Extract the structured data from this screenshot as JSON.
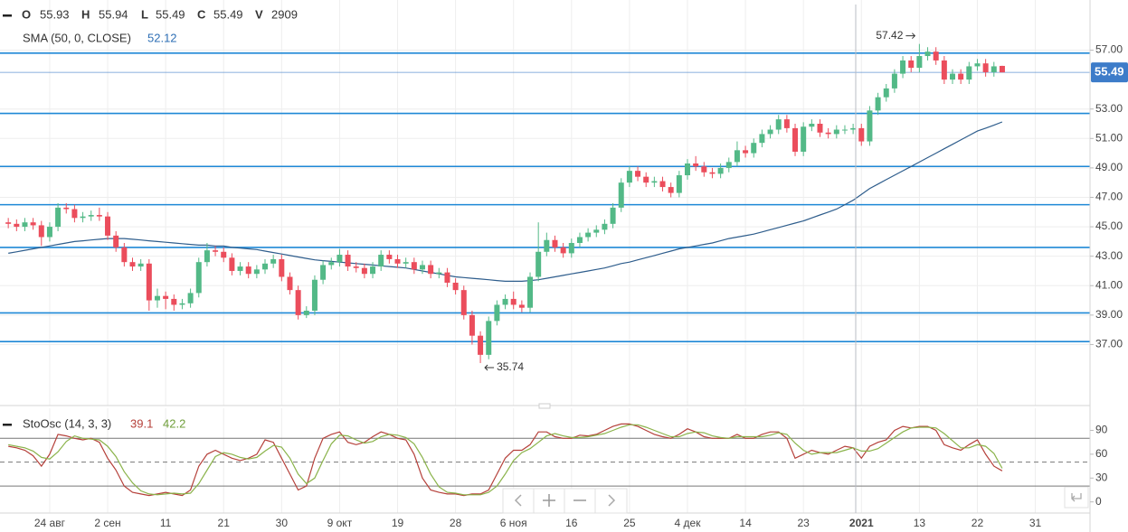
{
  "chart_data": [
    {
      "type": "candlestick",
      "labels": [
        "O",
        "H",
        "L",
        "C",
        "V"
      ],
      "volume": 2909,
      "up_color": "#53b987",
      "down_color": "#eb4d5c",
      "open": [
        45.3,
        45.2,
        45.0,
        45.3,
        45.1,
        44.3,
        45.0,
        46.3,
        46.2,
        45.6,
        45.7,
        45.8,
        45.7,
        44.4,
        43.6,
        42.6,
        42.3,
        42.5,
        40.0,
        40.3,
        40.1,
        39.7,
        39.8,
        40.5,
        42.6,
        43.4,
        43.3,
        42.9,
        42.0,
        42.3,
        41.8,
        42.1,
        42.5,
        42.8,
        41.6,
        40.7,
        39.0,
        39.3,
        41.4,
        42.4,
        42.6,
        43.1,
        42.3,
        42.2,
        41.8,
        42.3,
        43.1,
        42.8,
        42.5,
        42.6,
        42.1,
        42.4,
        41.8,
        41.9,
        41.2,
        40.7,
        39.0,
        37.6,
        36.3,
        38.6,
        39.7,
        40.1,
        39.7,
        39.5,
        41.6,
        43.3,
        44.1,
        43.6,
        43.2,
        43.9,
        44.3,
        44.6,
        44.8,
        45.2,
        46.3,
        48.0,
        48.8,
        48.4,
        48.0,
        48.1,
        47.7,
        47.3,
        48.5,
        49.3,
        49.1,
        48.7,
        48.6,
        49.0,
        49.4,
        50.2,
        50.0,
        50.7,
        51.3,
        51.6,
        52.3,
        51.7,
        50.1,
        51.8,
        52.0,
        51.4,
        51.3,
        51.6,
        51.6,
        51.7,
        50.8,
        52.9,
        53.8,
        54.4,
        55.4,
        56.3,
        55.8,
        56.6,
        56.9,
        56.3,
        55.0,
        55.4,
        55.0,
        55.9,
        56.1,
        55.5,
        55.93
      ],
      "high": [
        45.6,
        45.5,
        45.6,
        45.6,
        45.4,
        45.3,
        46.6,
        46.6,
        46.5,
        46.0,
        46.1,
        46.3,
        46.0,
        44.7,
        43.9,
        42.9,
        42.8,
        42.8,
        40.8,
        40.6,
        40.4,
        40.1,
        40.8,
        42.9,
        43.9,
        43.7,
        43.6,
        43.2,
        42.6,
        42.6,
        42.4,
        42.8,
        43.1,
        43.1,
        41.9,
        41.0,
        39.6,
        41.7,
        42.7,
        42.9,
        43.5,
        43.4,
        42.6,
        42.5,
        42.6,
        43.4,
        43.4,
        43.1,
        42.9,
        42.9,
        42.7,
        42.7,
        42.2,
        42.2,
        41.5,
        41.0,
        39.3,
        37.9,
        38.9,
        40.0,
        40.4,
        40.6,
        40.0,
        41.9,
        45.3,
        44.6,
        44.4,
        43.9,
        44.2,
        44.6,
        44.9,
        45.1,
        45.5,
        46.6,
        48.3,
        49.1,
        49.1,
        48.7,
        48.4,
        48.4,
        48.0,
        48.8,
        49.6,
        49.8,
        49.4,
        49.0,
        49.3,
        49.7,
        50.8,
        50.5,
        51.0,
        51.6,
        51.9,
        52.6,
        52.6,
        52.0,
        52.1,
        52.3,
        52.3,
        51.7,
        51.9,
        51.9,
        52.0,
        52.0,
        53.2,
        54.1,
        54.7,
        55.7,
        56.6,
        56.6,
        57.42,
        57.2,
        57.2,
        56.6,
        55.7,
        55.7,
        56.2,
        56.4,
        56.4,
        56.2,
        55.94
      ],
      "low": [
        44.9,
        44.7,
        44.7,
        44.8,
        43.7,
        44.0,
        44.7,
        45.9,
        45.3,
        45.3,
        45.4,
        45.4,
        44.1,
        43.3,
        42.3,
        42.0,
        42.0,
        39.3,
        39.5,
        39.4,
        39.3,
        39.4,
        39.5,
        40.2,
        42.3,
        43.0,
        42.6,
        41.7,
        41.7,
        41.5,
        41.5,
        41.8,
        42.2,
        41.3,
        40.4,
        38.7,
        38.8,
        39.0,
        41.1,
        42.1,
        42.3,
        42.0,
        41.9,
        41.5,
        41.5,
        42.0,
        42.5,
        42.2,
        42.2,
        41.8,
        41.8,
        41.5,
        41.5,
        40.9,
        40.4,
        38.7,
        37.0,
        35.74,
        36.0,
        38.3,
        39.4,
        39.4,
        39.2,
        39.2,
        41.3,
        43.0,
        43.3,
        42.9,
        42.9,
        43.6,
        44.0,
        44.3,
        44.5,
        44.9,
        46.0,
        47.7,
        48.1,
        47.7,
        47.7,
        47.4,
        47.0,
        47.0,
        48.2,
        48.8,
        48.4,
        48.3,
        48.3,
        48.7,
        49.1,
        49.7,
        49.7,
        50.4,
        51.0,
        51.3,
        51.4,
        49.8,
        49.8,
        51.5,
        51.1,
        51.0,
        51.0,
        51.3,
        51.3,
        50.5,
        50.5,
        52.6,
        53.5,
        54.1,
        55.1,
        55.5,
        55.5,
        56.3,
        56.0,
        54.7,
        54.7,
        54.7,
        54.7,
        55.6,
        55.2,
        55.2,
        55.49
      ],
      "close": [
        45.2,
        45.0,
        45.3,
        45.1,
        44.3,
        45.0,
        46.3,
        46.2,
        45.6,
        45.7,
        45.8,
        45.7,
        44.4,
        43.6,
        42.6,
        42.3,
        42.5,
        40.0,
        40.3,
        40.1,
        39.7,
        39.8,
        40.5,
        42.6,
        43.4,
        43.3,
        42.9,
        42.0,
        42.3,
        41.8,
        42.1,
        42.5,
        42.8,
        41.6,
        40.7,
        39.0,
        39.3,
        41.4,
        42.4,
        42.6,
        43.1,
        42.3,
        42.2,
        41.8,
        42.3,
        43.1,
        42.8,
        42.5,
        42.6,
        42.1,
        42.4,
        41.8,
        41.9,
        41.2,
        40.7,
        39.0,
        37.6,
        36.3,
        38.6,
        39.7,
        40.1,
        39.7,
        39.5,
        41.6,
        43.3,
        44.1,
        43.6,
        43.2,
        43.9,
        44.3,
        44.6,
        44.8,
        45.2,
        46.3,
        48.0,
        48.8,
        48.4,
        48.0,
        48.1,
        47.7,
        47.3,
        48.5,
        49.3,
        49.1,
        48.7,
        48.6,
        49.0,
        49.4,
        50.2,
        50.0,
        50.7,
        51.3,
        51.6,
        52.3,
        51.7,
        50.1,
        51.8,
        52.0,
        51.4,
        51.3,
        51.6,
        51.6,
        51.7,
        50.8,
        52.9,
        53.8,
        54.4,
        55.4,
        56.3,
        55.8,
        56.6,
        56.9,
        56.3,
        55.0,
        55.4,
        55.0,
        55.9,
        56.1,
        55.5,
        55.9,
        55.49
      ],
      "sma": {
        "name": "SMA (50, 0, CLOSE)",
        "color": "#2e5d8c",
        "values": [
          43.2,
          43.3,
          43.4,
          43.5,
          43.6,
          43.7,
          43.8,
          43.9,
          44.0,
          44.05,
          44.1,
          44.15,
          44.2,
          44.2,
          44.2,
          44.15,
          44.1,
          44.05,
          44.0,
          43.95,
          43.9,
          43.85,
          43.8,
          43.75,
          43.75,
          43.7,
          43.7,
          43.6,
          43.55,
          43.5,
          43.45,
          43.35,
          43.25,
          43.15,
          43.05,
          42.95,
          42.85,
          42.75,
          42.7,
          42.65,
          42.6,
          42.55,
          42.5,
          42.45,
          42.4,
          42.35,
          42.3,
          42.25,
          42.2,
          42.1,
          42.0,
          41.9,
          41.8,
          41.7,
          41.6,
          41.55,
          41.5,
          41.45,
          41.4,
          41.35,
          41.3,
          41.3,
          41.3,
          41.35,
          41.4,
          41.5,
          41.6,
          41.7,
          41.8,
          41.9,
          42.0,
          42.1,
          42.2,
          42.35,
          42.5,
          42.6,
          42.75,
          42.9,
          43.05,
          43.2,
          43.35,
          43.5,
          43.6,
          43.7,
          43.8,
          43.9,
          44.05,
          44.2,
          44.3,
          44.4,
          44.5,
          44.65,
          44.8,
          44.95,
          45.1,
          45.25,
          45.4,
          45.6,
          45.8,
          46.0,
          46.2,
          46.5,
          46.8,
          47.2,
          47.6,
          47.9,
          48.2,
          48.5,
          48.8,
          49.1,
          49.4,
          49.7,
          50.0,
          50.3,
          50.6,
          50.9,
          51.2,
          51.5,
          51.7,
          51.9,
          52.12
        ]
      },
      "levels": [
        56.8,
        52.7,
        49.1,
        46.5,
        43.6,
        39.15,
        37.2
      ],
      "level_color": "#1e88d6",
      "last_price_color": "#3d7cc9",
      "ylim": [
        33.1,
        60.1
      ],
      "yticks": [
        {
          "value": 37,
          "label": "37.00"
        },
        {
          "value": 39,
          "label": "39.00"
        },
        {
          "value": 41,
          "label": "41.00"
        },
        {
          "value": 43,
          "label": "43.00"
        },
        {
          "value": 45,
          "label": "45.00"
        },
        {
          "value": 47,
          "label": "47.00"
        },
        {
          "value": 49,
          "label": "49.00"
        },
        {
          "value": 51,
          "label": "51.00"
        },
        {
          "value": 53,
          "label": "53.00"
        },
        {
          "value": 57,
          "label": "57.00"
        }
      ],
      "xlim": [
        -1,
        130.6
      ],
      "xticks": [
        {
          "value": 5,
          "label": "24 авг"
        },
        {
          "value": 12,
          "label": "2 сен"
        },
        {
          "value": 19,
          "label": "11"
        },
        {
          "value": 26,
          "label": "21"
        },
        {
          "value": 33,
          "label": "30"
        },
        {
          "value": 40,
          "label": "9 окт"
        },
        {
          "value": 47,
          "label": "19"
        },
        {
          "value": 54,
          "label": "28"
        },
        {
          "value": 61,
          "label": "6 ноя"
        },
        {
          "value": 68,
          "label": "16"
        },
        {
          "value": 75,
          "label": "25"
        },
        {
          "value": 82,
          "label": "4 дек"
        },
        {
          "value": 89,
          "label": "14"
        },
        {
          "value": 96,
          "label": "23"
        },
        {
          "value": 103,
          "label": "2021"
        },
        {
          "value": 110,
          "label": "13"
        },
        {
          "value": 117,
          "label": "22"
        },
        {
          "value": 124,
          "label": "31"
        }
      ],
      "grid": true
    },
    {
      "type": "line",
      "name": "StoOsc (14, 3, 3)",
      "series": [
        {
          "color": "#b5403a",
          "values": [
            70,
            68,
            65,
            58,
            45,
            60,
            85,
            83,
            80,
            78,
            80,
            75,
            55,
            40,
            20,
            12,
            10,
            8,
            10,
            12,
            10,
            8,
            15,
            45,
            60,
            65,
            60,
            55,
            52,
            55,
            60,
            78,
            75,
            55,
            35,
            15,
            20,
            55,
            80,
            85,
            88,
            75,
            72,
            75,
            82,
            88,
            85,
            80,
            78,
            60,
            30,
            15,
            12,
            10,
            10,
            8,
            10,
            10,
            15,
            35,
            55,
            65,
            65,
            72,
            88,
            88,
            82,
            80,
            80,
            84,
            83,
            85,
            90,
            95,
            98,
            98,
            95,
            90,
            85,
            82,
            80,
            85,
            92,
            88,
            82,
            80,
            80,
            80,
            85,
            80,
            80,
            85,
            88,
            88,
            80,
            55,
            60,
            65,
            62,
            60,
            65,
            70,
            68,
            55,
            70,
            75,
            78,
            90,
            95,
            93,
            95,
            95,
            90,
            72,
            68,
            65,
            72,
            78,
            60,
            45,
            39.1
          ]
        },
        {
          "color": "#8ab34a",
          "values": [
            72,
            70,
            68,
            64,
            56,
            54,
            63,
            76,
            83,
            80,
            79,
            78,
            70,
            57,
            38,
            24,
            14,
            10,
            9,
            10,
            11,
            10,
            11,
            23,
            40,
            57,
            62,
            60,
            56,
            54,
            56,
            64,
            71,
            69,
            55,
            35,
            23,
            30,
            52,
            73,
            84,
            83,
            78,
            74,
            76,
            82,
            85,
            84,
            81,
            73,
            56,
            35,
            19,
            12,
            11,
            9,
            9,
            9,
            12,
            20,
            35,
            52,
            62,
            67,
            75,
            83,
            86,
            83,
            81,
            81,
            82,
            84,
            86,
            90,
            94,
            97,
            97,
            94,
            90,
            86,
            82,
            82,
            86,
            88,
            87,
            83,
            81,
            80,
            82,
            82,
            82,
            82,
            84,
            87,
            85,
            74,
            65,
            60,
            62,
            62,
            62,
            65,
            68,
            64,
            64,
            67,
            74,
            81,
            88,
            93,
            94,
            94,
            93,
            86,
            77,
            68,
            68,
            72,
            70,
            61,
            42.2
          ]
        }
      ],
      "levels": [
        80,
        20
      ],
      "dashed_level": 50,
      "ylim": [
        -14,
        111
      ],
      "yticks": [
        0,
        30,
        60,
        90
      ]
    }
  ]
}
